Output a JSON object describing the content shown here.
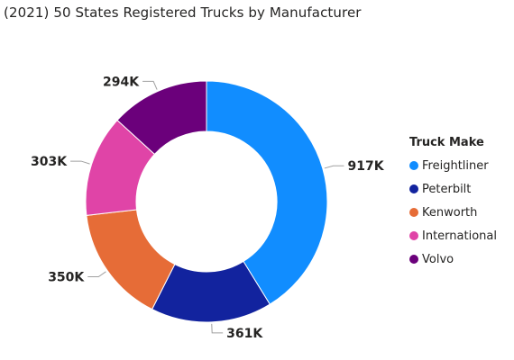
{
  "title": "(2021) 50 States Registered Trucks by Manufacturer",
  "legend": {
    "title": "Truck Make"
  },
  "chart_data": {
    "type": "pie",
    "variant": "donut",
    "title": "(2021) 50 States Registered Trucks by Manufacturer",
    "legend_title": "Truck Make",
    "legend_position": "right",
    "categories": [
      "Freightliner",
      "Peterbilt",
      "Kenworth",
      "International",
      "Volvo"
    ],
    "values": [
      917000,
      361000,
      350000,
      303000,
      294000
    ],
    "data_labels": [
      "917K",
      "361K",
      "350K",
      "303K",
      "294K"
    ],
    "colors": [
      "#118DFF",
      "#12239E",
      "#E66C37",
      "#E044A7",
      "#6B007B"
    ]
  }
}
